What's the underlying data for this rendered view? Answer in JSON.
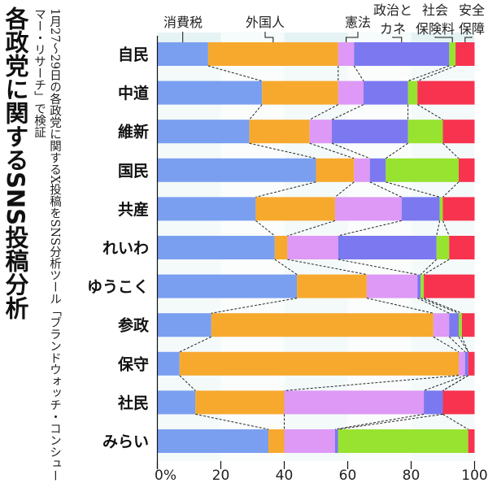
{
  "title": "各政党に関するSNS投稿分析",
  "subtitle": "1月27～29日の各政党に関するX投稿をSNS分析ツール「ブランドウォッチ・コンシューマー・リサーチ」で検証",
  "chart_data": {
    "type": "bar",
    "orientation": "horizontal",
    "stacked": true,
    "categories": [
      "自民",
      "中道",
      "維新",
      "国民",
      "共産",
      "れいわ",
      "ゆうこく",
      "参政",
      "保守",
      "社民",
      "みらい"
    ],
    "series": [
      {
        "name": "消費税",
        "color": "#7a9ff0",
        "values": [
          16,
          33,
          29,
          50,
          31,
          37,
          44,
          17,
          7,
          12,
          35
        ]
      },
      {
        "name": "外国人",
        "color": "#f7a92e",
        "values": [
          41,
          24,
          19,
          12,
          25,
          4,
          22,
          70,
          88,
          28,
          5
        ]
      },
      {
        "name": "憲法",
        "color": "#dd99f5",
        "values": [
          5,
          8,
          7,
          5,
          21,
          16,
          16,
          5,
          2,
          44,
          16
        ]
      },
      {
        "name": "政治とカネ",
        "color": "#7b78f0",
        "values": [
          30,
          14,
          24,
          5,
          12,
          31,
          1,
          3,
          1,
          6,
          1
        ]
      },
      {
        "name": "社会保険料",
        "color": "#98e230",
        "values": [
          2,
          3,
          11,
          23,
          1,
          4,
          1,
          1,
          0,
          0,
          41
        ]
      },
      {
        "name": "安全保障",
        "color": "#f7334f",
        "values": [
          6,
          18,
          10,
          5,
          10,
          8,
          16,
          4,
          2,
          10,
          2
        ]
      }
    ],
    "legend_labels": [
      [
        "消費税"
      ],
      [
        "外国人"
      ],
      [
        "憲法"
      ],
      [
        "政治と",
        "カネ"
      ],
      [
        "社会",
        "保険料"
      ],
      [
        "安全",
        "保障"
      ]
    ],
    "xlim": [
      0,
      100
    ],
    "xticks": [
      "0%",
      "20",
      "40",
      "60",
      "80",
      "100"
    ],
    "connector_lines": "dashed",
    "legend_placement": "top"
  }
}
